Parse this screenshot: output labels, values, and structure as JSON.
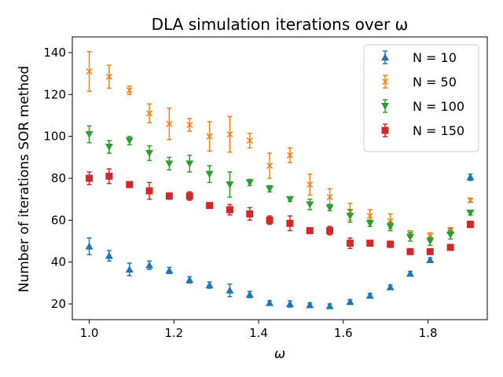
{
  "chart_data": {
    "type": "scatter",
    "title": "DLA simulation iterations over ω",
    "xlabel": "ω",
    "ylabel": "Number of iterations SOR method",
    "xlim": [
      0.96,
      1.94
    ],
    "ylim": [
      12.5,
      147.5
    ],
    "xticks": [
      1.0,
      1.2,
      1.4,
      1.6,
      1.8
    ],
    "xtick_labels": [
      "1.0",
      "1.2",
      "1.4",
      "1.6",
      "1.8"
    ],
    "yticks": [
      20,
      40,
      60,
      80,
      100,
      120,
      140
    ],
    "ytick_labels": [
      "20",
      "40",
      "60",
      "80",
      "100",
      "120",
      "140"
    ],
    "grid": false,
    "legend_position": "top-right",
    "x": [
      1.0,
      1.047,
      1.095,
      1.142,
      1.189,
      1.237,
      1.284,
      1.332,
      1.379,
      1.426,
      1.474,
      1.521,
      1.568,
      1.616,
      1.663,
      1.711,
      1.758,
      1.805,
      1.853,
      1.9
    ],
    "series": [
      {
        "name": "N = 10",
        "color": "#1f77b4",
        "marker": "triangle-up",
        "values": [
          47.5,
          43,
          36.5,
          38.5,
          36,
          31.5,
          29,
          26.5,
          24.5,
          20.5,
          20,
          19.5,
          19,
          21,
          24,
          28,
          34.5,
          41,
          55,
          80.5
        ],
        "errors": [
          4,
          2.5,
          3,
          2,
          1.5,
          1.5,
          1.5,
          3,
          1.5,
          1,
          1.5,
          1,
          1,
          1,
          1,
          1,
          1,
          1,
          1,
          1.5
        ]
      },
      {
        "name": "N = 50",
        "color": "#ff7f0e",
        "marker": "x",
        "values": [
          131,
          128.5,
          122,
          111,
          106,
          105.5,
          100,
          101,
          98,
          86,
          91,
          77,
          71,
          64,
          62,
          59.5,
          53.5,
          52.5,
          55,
          69.5
        ],
        "errors": [
          9.5,
          5.5,
          2,
          4.5,
          7.5,
          3,
          7,
          8.5,
          3.5,
          6,
          3.5,
          5,
          4,
          4,
          3,
          3.5,
          1.5,
          1.5,
          1.5,
          1
        ]
      },
      {
        "name": "N = 100",
        "color": "#2ca02c",
        "marker": "triangle-down",
        "values": [
          101,
          95,
          98,
          92,
          87,
          87,
          82,
          77,
          78,
          75,
          70,
          67.5,
          66,
          62,
          58.5,
          57,
          52,
          50,
          53,
          63.5
        ],
        "errors": [
          4,
          3,
          2,
          3.5,
          3,
          4,
          4,
          6,
          1.5,
          1.5,
          1,
          2.5,
          1.5,
          3,
          1.5,
          2,
          2,
          2,
          2,
          1
        ]
      },
      {
        "name": "N = 150",
        "color": "#d62728",
        "marker": "square",
        "values": [
          80,
          81,
          77,
          74,
          71.5,
          71.5,
          67,
          65,
          63,
          60,
          58.5,
          55,
          55,
          49,
          49,
          48.5,
          45,
          45,
          47,
          58
        ],
        "errors": [
          3,
          3.5,
          1,
          4,
          1.5,
          2,
          1,
          2.5,
          3,
          2,
          3.5,
          1,
          2,
          2.5,
          1,
          1.5,
          1,
          1,
          1,
          1.5
        ]
      }
    ]
  }
}
